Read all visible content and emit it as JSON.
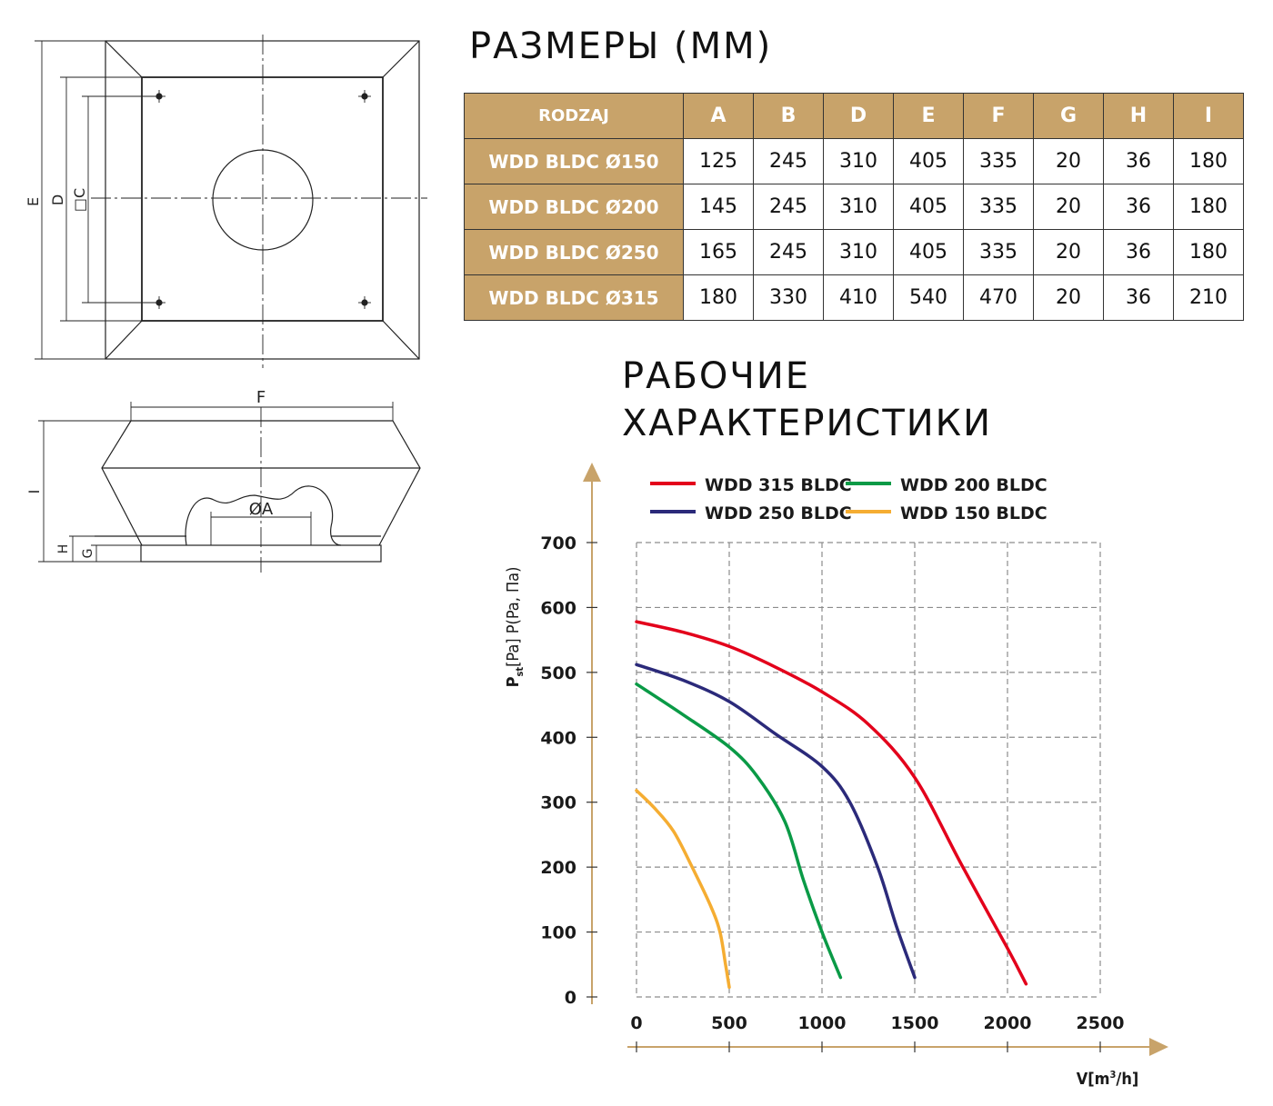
{
  "dimensions_title": "РАЗМЕРЫ (MM)",
  "performance_title": [
    "РАБОЧИЕ",
    "ХАРАКТЕРИСТИКИ"
  ],
  "drawing_labels": {
    "E": "E",
    "D": "D",
    "C": "□C",
    "F": "F",
    "A": "ØA",
    "I": "I",
    "H": "H",
    "G": "G"
  },
  "table": {
    "header": [
      "RODZAJ",
      "A",
      "B",
      "D",
      "E",
      "F",
      "G",
      "H",
      "I"
    ],
    "rows": [
      [
        "WDD BLDC Ø150",
        "125",
        "245",
        "310",
        "405",
        "335",
        "20",
        "36",
        "180"
      ],
      [
        "WDD BLDC Ø200",
        "145",
        "245",
        "310",
        "405",
        "335",
        "20",
        "36",
        "180"
      ],
      [
        "WDD BLDC Ø250",
        "165",
        "245",
        "310",
        "405",
        "335",
        "20",
        "36",
        "180"
      ],
      [
        "WDD BLDC Ø315",
        "180",
        "330",
        "410",
        "540",
        "470",
        "20",
        "36",
        "210"
      ]
    ]
  },
  "colors": {
    "accent": "#c8a36a",
    "red": "#e3001b",
    "navy": "#2b2a7a",
    "green": "#0a9a46",
    "orange": "#f5ad32"
  },
  "chart_data": {
    "type": "line",
    "ylabel_main": "P",
    "ylabel_sub": "st",
    "ylabel_rest": "[Pa] P(Pa, Па)",
    "xlabel_main": "V[m",
    "xlabel_sup": "3",
    "xlabel_rest": "/h]",
    "xlim": [
      0,
      2500
    ],
    "ylim": [
      0,
      700
    ],
    "x_ticks": [
      "0",
      "500",
      "1000",
      "1500",
      "2000",
      "2500"
    ],
    "y_ticks": [
      "0",
      "100",
      "200",
      "300",
      "400",
      "500",
      "600",
      "700"
    ],
    "grid": true,
    "legend_position": "top",
    "series": [
      {
        "name": "WDD 315 BLDC",
        "color": "#e3001b",
        "points": [
          [
            0,
            578
          ],
          [
            250,
            562
          ],
          [
            500,
            540
          ],
          [
            750,
            508
          ],
          [
            1000,
            470
          ],
          [
            1250,
            420
          ],
          [
            1500,
            338
          ],
          [
            1750,
            205
          ],
          [
            2000,
            75
          ],
          [
            2100,
            20
          ]
        ]
      },
      {
        "name": "WDD 250 BLDC",
        "color": "#2b2a7a",
        "points": [
          [
            0,
            512
          ],
          [
            250,
            488
          ],
          [
            500,
            455
          ],
          [
            750,
            405
          ],
          [
            1000,
            355
          ],
          [
            1150,
            300
          ],
          [
            1300,
            200
          ],
          [
            1400,
            110
          ],
          [
            1500,
            30
          ]
        ]
      },
      {
        "name": "WDD 200 BLDC",
        "color": "#0a9a46",
        "points": [
          [
            0,
            482
          ],
          [
            250,
            435
          ],
          [
            500,
            385
          ],
          [
            650,
            340
          ],
          [
            800,
            270
          ],
          [
            900,
            180
          ],
          [
            1000,
            100
          ],
          [
            1100,
            30
          ]
        ]
      },
      {
        "name": "WDD 150 BLDC",
        "color": "#f5ad32",
        "points": [
          [
            0,
            318
          ],
          [
            100,
            290
          ],
          [
            200,
            255
          ],
          [
            300,
            200
          ],
          [
            400,
            140
          ],
          [
            450,
            100
          ],
          [
            480,
            50
          ],
          [
            500,
            15
          ]
        ]
      }
    ]
  }
}
